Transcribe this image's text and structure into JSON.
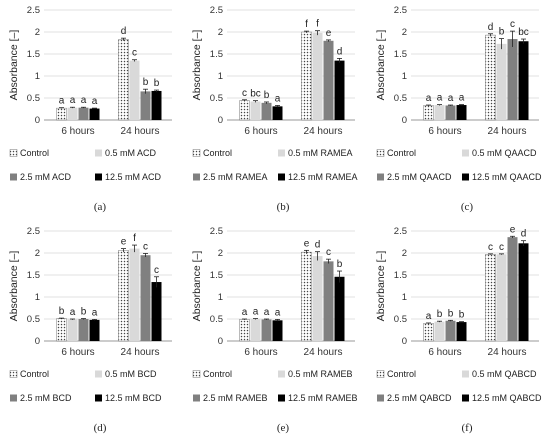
{
  "chart_data": [
    {
      "type": "bar",
      "panel_label": "(a)",
      "ylabel": "Absorbance [–]",
      "ylim": [
        0,
        2.5
      ],
      "yticks": [
        "0",
        "0.5",
        "1",
        "1.5",
        "2",
        "2.5"
      ],
      "grid": true,
      "legend_position": "bottom",
      "categories": [
        "6 hours",
        "24 hours"
      ],
      "series": [
        {
          "name": "Control",
          "values": [
            0.27,
            1.83
          ],
          "errors": [
            0.01,
            0.03
          ],
          "letters": [
            "a",
            "d"
          ],
          "fill": "dots"
        },
        {
          "name": "0.5 mM ACD",
          "values": [
            0.28,
            1.35
          ],
          "errors": [
            0.01,
            0.02
          ],
          "letters": [
            "a",
            "c"
          ],
          "fill": "#d9d9d9"
        },
        {
          "name": "2.5 mM ACD",
          "values": [
            0.28,
            0.65
          ],
          "errors": [
            0.01,
            0.05
          ],
          "letters": [
            "a",
            "b"
          ],
          "fill": "#808080"
        },
        {
          "name": "12.5 mM ACD",
          "values": [
            0.26,
            0.66
          ],
          "errors": [
            0.01,
            0.02
          ],
          "letters": [
            "a",
            "b"
          ],
          "fill": "#000000"
        }
      ]
    },
    {
      "type": "bar",
      "panel_label": "(b)",
      "ylabel": "Absorbance [–]",
      "ylim": [
        0,
        2.5
      ],
      "yticks": [
        "0",
        "0.5",
        "1",
        "1.5",
        "2",
        "2.5"
      ],
      "grid": true,
      "legend_position": "bottom",
      "categories": [
        "6 hours",
        "24 hours"
      ],
      "series": [
        {
          "name": "Control",
          "values": [
            0.44,
            2.0
          ],
          "errors": [
            0.02,
            0.02
          ],
          "letters": [
            "c",
            "f"
          ],
          "fill": "dots"
        },
        {
          "name": "0.5 mM RAMEA",
          "values": [
            0.42,
            1.98
          ],
          "errors": [
            0.02,
            0.05
          ],
          "letters": [
            "bc",
            "f"
          ],
          "fill": "#d9d9d9"
        },
        {
          "name": "2.5 mM RAMEA",
          "values": [
            0.39,
            1.8
          ],
          "errors": [
            0.02,
            0.02
          ],
          "letters": [
            "b",
            "e"
          ],
          "fill": "#808080"
        },
        {
          "name": "12.5 mM RAMEA",
          "values": [
            0.31,
            1.35
          ],
          "errors": [
            0.02,
            0.05
          ],
          "letters": [
            "a",
            "d"
          ],
          "fill": "#000000"
        }
      ]
    },
    {
      "type": "bar",
      "panel_label": "(c)",
      "ylabel": "Absorbance [–]",
      "ylim": [
        0,
        2.5
      ],
      "yticks": [
        "0",
        "0.5",
        "1",
        "1.5",
        "2",
        "2.5"
      ],
      "grid": true,
      "legend_position": "bottom",
      "categories": [
        "6 hours",
        "24 hours"
      ],
      "series": [
        {
          "name": "Control",
          "values": [
            0.33,
            1.93
          ],
          "errors": [
            0.01,
            0.03
          ],
          "letters": [
            "a",
            "d"
          ],
          "fill": "dots"
        },
        {
          "name": "0.5 mM QAACD",
          "values": [
            0.34,
            1.73
          ],
          "errors": [
            0.01,
            0.12
          ],
          "letters": [
            "a",
            "b"
          ],
          "fill": "#d9d9d9"
        },
        {
          "name": "2.5 mM QAACD",
          "values": [
            0.33,
            1.84
          ],
          "errors": [
            0.01,
            0.18
          ],
          "letters": [
            "a",
            "c"
          ],
          "fill": "#808080"
        },
        {
          "name": "12.5 mM QAACD",
          "values": [
            0.34,
            1.79
          ],
          "errors": [
            0.01,
            0.05
          ],
          "letters": [
            "a",
            "bc"
          ],
          "fill": "#000000"
        }
      ]
    },
    {
      "type": "bar",
      "panel_label": "(d)",
      "ylabel": "Absorbance [–]",
      "ylim": [
        0,
        2.5
      ],
      "yticks": [
        "0",
        "0.5",
        "1",
        "1.5",
        "2",
        "2.5"
      ],
      "grid": true,
      "legend_position": "bottom",
      "categories": [
        "6 hours",
        "24 hours"
      ],
      "series": [
        {
          "name": "Control",
          "values": [
            0.51,
            2.06
          ],
          "errors": [
            0.01,
            0.04
          ],
          "letters": [
            "b",
            "e"
          ],
          "fill": "dots"
        },
        {
          "name": "0.5 mM BCD",
          "values": [
            0.49,
            2.1
          ],
          "errors": [
            0.01,
            0.08
          ],
          "letters": [
            "a",
            "f"
          ],
          "fill": "#d9d9d9"
        },
        {
          "name": "2.5 mM BCD",
          "values": [
            0.5,
            1.95
          ],
          "errors": [
            0.01,
            0.04
          ],
          "letters": [
            "b",
            "c"
          ],
          "fill": "#808080"
        },
        {
          "name": "12.5 mM BCD",
          "values": [
            0.48,
            1.34
          ],
          "errors": [
            0.01,
            0.12
          ],
          "letters": [
            "a",
            "c"
          ],
          "fill": "#000000"
        }
      ]
    },
    {
      "type": "bar",
      "panel_label": "(e)",
      "ylabel": "Absorbance [–]",
      "ylim": [
        0,
        2.5
      ],
      "yticks": [
        "0",
        "0.5",
        "1",
        "1.5",
        "2",
        "2.5"
      ],
      "grid": true,
      "legend_position": "bottom",
      "categories": [
        "6 hours",
        "24 hours"
      ],
      "series": [
        {
          "name": "Control",
          "values": [
            0.49,
            2.02
          ],
          "errors": [
            0.01,
            0.04
          ],
          "letters": [
            "a",
            "e"
          ],
          "fill": "dots"
        },
        {
          "name": "0.5 mM RAMEB",
          "values": [
            0.5,
            1.93
          ],
          "errors": [
            0.01,
            0.1
          ],
          "letters": [
            "a",
            "d"
          ],
          "fill": "#d9d9d9"
        },
        {
          "name": "2.5 mM RAMEB",
          "values": [
            0.49,
            1.81
          ],
          "errors": [
            0.01,
            0.05
          ],
          "letters": [
            "a",
            "c"
          ],
          "fill": "#808080"
        },
        {
          "name": "12.5 mM RAMEB",
          "values": [
            0.47,
            1.46
          ],
          "errors": [
            0.02,
            0.13
          ],
          "letters": [
            "a",
            "b"
          ],
          "fill": "#000000"
        }
      ]
    },
    {
      "type": "bar",
      "panel_label": "(f)",
      "ylabel": "Absorbance [–]",
      "ylim": [
        0,
        2.5
      ],
      "yticks": [
        "0",
        "0.5",
        "1",
        "1.5",
        "2",
        "2.5"
      ],
      "grid": true,
      "legend_position": "bottom",
      "categories": [
        "6 hours",
        "24 hours"
      ],
      "series": [
        {
          "name": "Control",
          "values": [
            0.4,
            1.97
          ],
          "errors": [
            0.01,
            0.01
          ],
          "letters": [
            "a",
            "c"
          ],
          "fill": "dots"
        },
        {
          "name": "0.5 mM QABCD",
          "values": [
            0.44,
            1.97
          ],
          "errors": [
            0.01,
            0.01
          ],
          "letters": [
            "b",
            "c"
          ],
          "fill": "#d9d9d9"
        },
        {
          "name": "2.5 mM QABCD",
          "values": [
            0.46,
            2.36
          ],
          "errors": [
            0.01,
            0.02
          ],
          "letters": [
            "b",
            "e"
          ],
          "fill": "#808080"
        },
        {
          "name": "12.5 mM QABCD",
          "values": [
            0.43,
            2.22
          ],
          "errors": [
            0.01,
            0.06
          ],
          "letters": [
            "b",
            "d"
          ],
          "fill": "#000000"
        }
      ]
    }
  ]
}
